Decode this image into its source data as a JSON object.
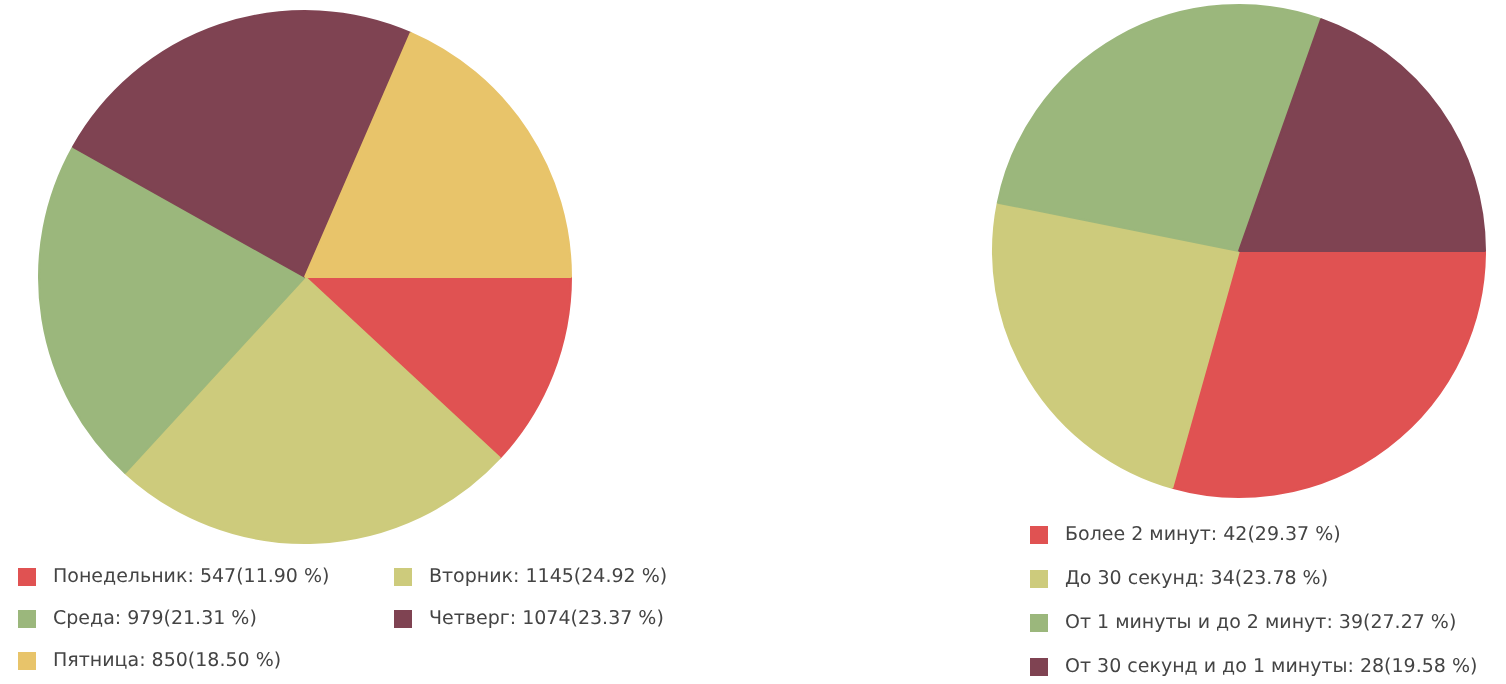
{
  "chart_data": [
    {
      "type": "pie",
      "categories": [
        "Понедельник",
        "Вторник",
        "Среда",
        "Четверг",
        "Пятница"
      ],
      "values": [
        547,
        1145,
        979,
        1074,
        850
      ],
      "colors": [
        "#e05252",
        "#cdcb7c",
        "#9bb77c",
        "#7f4352",
        "#e8c46a"
      ],
      "value_labels": [
        "547(11.90 %)",
        "1145(24.92 %)",
        "979(21.31 %)",
        "1074(23.37 %)",
        "850(18.50 %)"
      ],
      "legend": "bottom"
    },
    {
      "type": "pie",
      "categories": [
        "Более 2 минут",
        "До 30 секунд",
        "От 1 минуты и до 2 минут",
        "От 30 секунд и до 1 минуты"
      ],
      "values": [
        42,
        34,
        39,
        28
      ],
      "colors": [
        "#e05252",
        "#cdcb7c",
        "#9bb77c",
        "#7f4352"
      ],
      "value_labels": [
        "42(29.37 %)",
        "34(23.78 %)",
        "39(27.27 %)",
        "28(19.58 %)"
      ],
      "legend": "bottom"
    }
  ]
}
